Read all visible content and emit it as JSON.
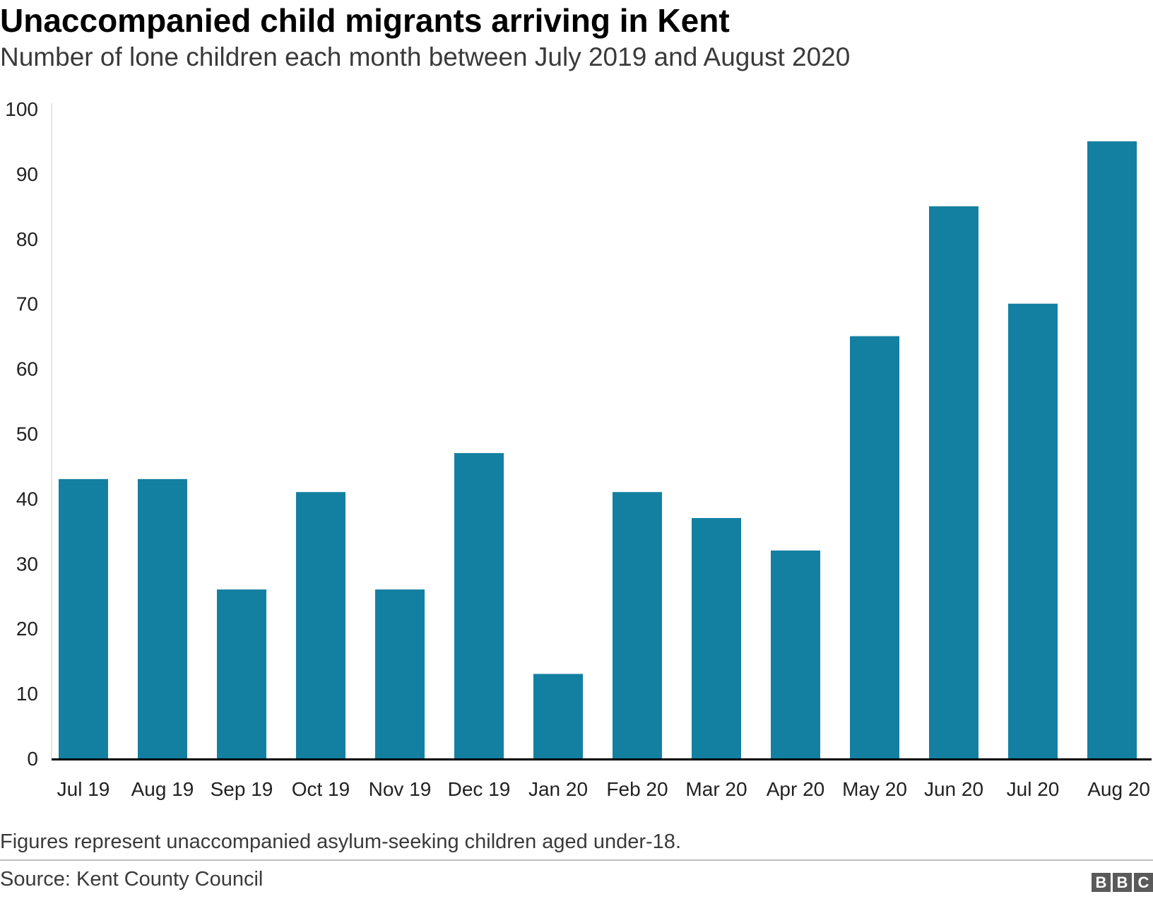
{
  "header": {
    "title": "Unaccompanied child migrants arriving in Kent",
    "subtitle": "Number of lone children each month between July 2019 and August 2020"
  },
  "chart_data": {
    "type": "bar",
    "title": "Unaccompanied child migrants arriving in Kent",
    "subtitle": "Number of lone children each month between July 2019 and August 2020",
    "xlabel": "",
    "ylabel": "",
    "categories": [
      "Jul 19",
      "Aug 19",
      "Sep 19",
      "Oct 19",
      "Nov 19",
      "Dec 19",
      "Jan 20",
      "Feb 20",
      "Mar 20",
      "Apr 20",
      "May 20",
      "Jun 20",
      "Jul 20",
      "Aug 20"
    ],
    "values": [
      43,
      43,
      26,
      41,
      26,
      47,
      13,
      41,
      37,
      32,
      65,
      85,
      70,
      95
    ],
    "ylim": [
      0,
      100
    ],
    "yticks": [
      0,
      10,
      20,
      30,
      40,
      50,
      60,
      70,
      80,
      90,
      100
    ],
    "grid": false,
    "bar_color": "#1380A1",
    "axis_color": "#000000"
  },
  "footer": {
    "note": "Figures represent unaccompanied asylum-seeking children aged under-18.",
    "source": "Source: Kent County Council",
    "logo_letters": [
      "B",
      "B",
      "C"
    ]
  }
}
